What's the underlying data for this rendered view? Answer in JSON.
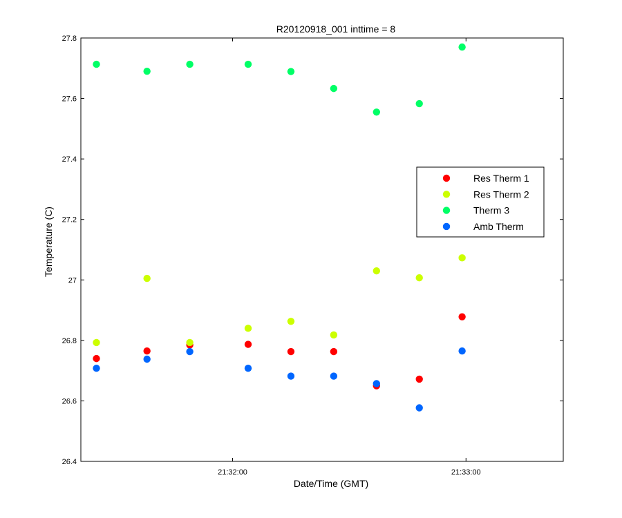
{
  "chart_data": {
    "type": "scatter",
    "title": "R20120918_001 inttime = 8",
    "xlabel": "Date/Time (GMT)",
    "ylabel": "Temperature (C)",
    "x_unit": "time of day (GMT)",
    "xlim": [
      "21:31:21",
      "21:33:25"
    ],
    "ylim": [
      26.4,
      27.8
    ],
    "x_ticks": [
      {
        "value": "21:32:00",
        "label": "21:32:00"
      },
      {
        "value": "21:33:00",
        "label": "21:33:00"
      }
    ],
    "y_ticks": [
      {
        "value": 26.4,
        "label": "26.4"
      },
      {
        "value": 26.6,
        "label": "26.6"
      },
      {
        "value": 26.8,
        "label": "26.8"
      },
      {
        "value": 27.0,
        "label": "27"
      },
      {
        "value": 27.2,
        "label": "27.2"
      },
      {
        "value": 27.4,
        "label": "27.4"
      },
      {
        "value": 27.6,
        "label": "27.6"
      },
      {
        "value": 27.8,
        "label": "27.8"
      }
    ],
    "grid": false,
    "legend_position": "right-middle",
    "x": [
      "21:31:25",
      "21:31:38",
      "21:31:49",
      "21:32:04",
      "21:32:15",
      "21:32:26",
      "21:32:37",
      "21:32:48",
      "21:32:59"
    ],
    "series": [
      {
        "name": "Res Therm 1",
        "color": "#ff0000",
        "values": [
          26.74,
          26.765,
          26.785,
          26.787,
          26.763,
          26.763,
          26.65,
          26.672,
          26.878
        ]
      },
      {
        "name": "Res Therm 2",
        "color": "#ccff00",
        "values": [
          26.793,
          27.005,
          26.793,
          26.84,
          26.863,
          26.818,
          27.03,
          27.007,
          27.073
        ]
      },
      {
        "name": "Therm 3",
        "color": "#00ff66",
        "values": [
          27.713,
          27.69,
          27.713,
          27.713,
          27.689,
          27.633,
          27.555,
          27.583,
          27.77
        ]
      },
      {
        "name": "Amb Therm",
        "color": "#0066ff",
        "values": [
          26.708,
          26.738,
          26.763,
          26.708,
          26.682,
          26.682,
          26.657,
          26.577,
          26.765
        ]
      }
    ]
  }
}
